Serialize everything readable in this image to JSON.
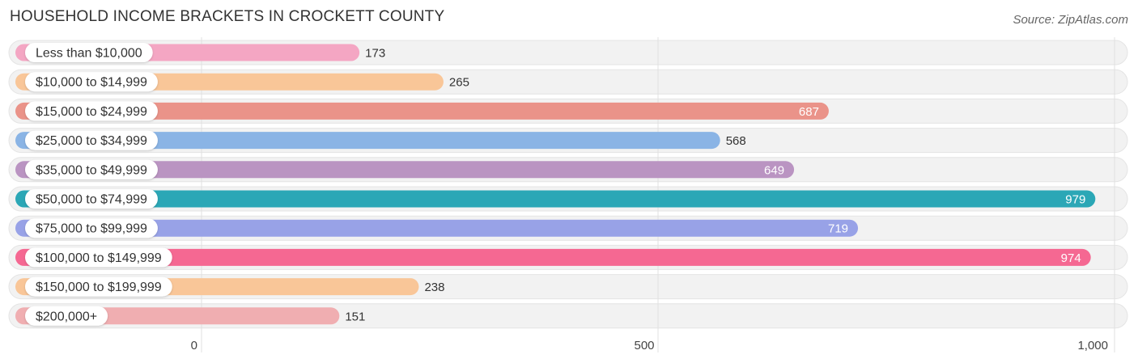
{
  "title": "HOUSEHOLD INCOME BRACKETS IN CROCKETT COUNTY",
  "source": "Source: ZipAtlas.com",
  "chart_data": {
    "type": "bar",
    "orientation": "horizontal",
    "categories": [
      "Less than $10,000",
      "$10,000 to $14,999",
      "$15,000 to $24,999",
      "$25,000 to $34,999",
      "$35,000 to $49,999",
      "$50,000 to $74,999",
      "$75,000 to $99,999",
      "$100,000 to $149,999",
      "$150,000 to $199,999",
      "$200,000+"
    ],
    "values": [
      173,
      265,
      687,
      568,
      649,
      979,
      719,
      974,
      238,
      151
    ],
    "value_labels": [
      "173",
      "265",
      "687",
      "568",
      "649",
      "979",
      "719",
      "974",
      "238",
      "151"
    ],
    "colors": [
      "#f4a6c3",
      "#f9c698",
      "#ea9389",
      "#8ab4e5",
      "#ba94c2",
      "#2ba7b6",
      "#98a2e7",
      "#f56892",
      "#f9c698",
      "#f0aeb1"
    ],
    "xlim": [
      0,
      1000
    ],
    "xticks": [
      0,
      500,
      1000
    ],
    "xtick_labels": [
      "0",
      "500",
      "1,000"
    ],
    "grid": true
  }
}
